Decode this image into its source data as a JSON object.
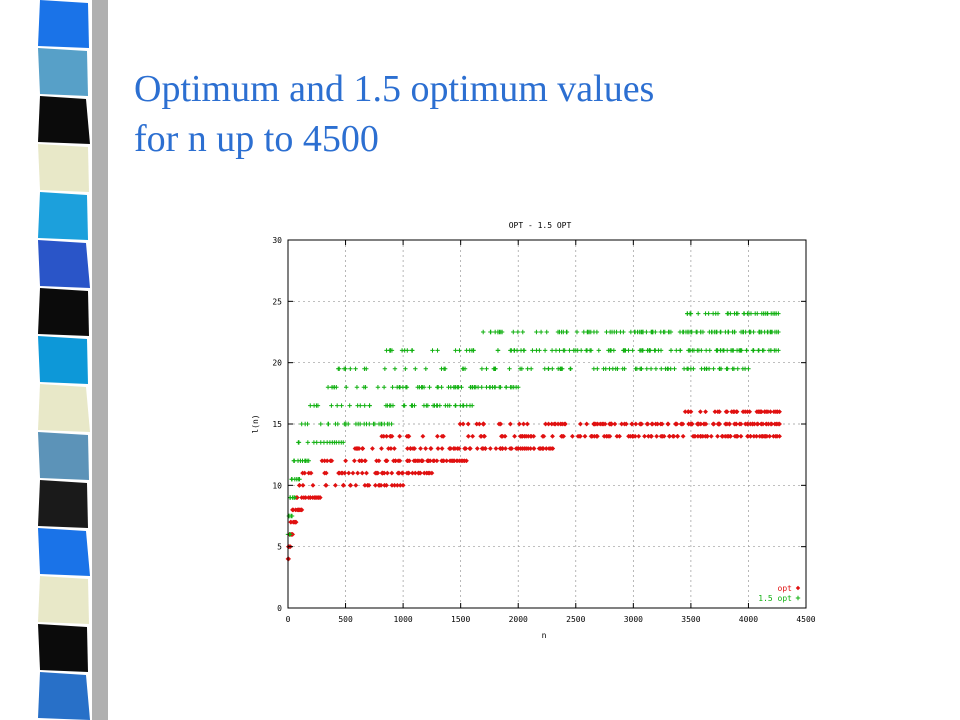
{
  "slide": {
    "title_line1": "Optimum and 1.5 optimum values",
    "title_line2": "for n up to 4500",
    "title_color": "#2c6fd1"
  },
  "decor": {
    "stripe_colors": [
      "#1a73e8",
      "#57a0c8",
      "#0b0b0b",
      "#e8e8c8",
      "#1ca0dc",
      "#2a55c8",
      "#0b0b0b",
      "#0d98d8",
      "#e8e8c8",
      "#5c93b8",
      "#1a1a1a",
      "#1a73e8",
      "#e8e8c8",
      "#0b0b0b",
      "#2870c8"
    ]
  },
  "chart_data": {
    "type": "scatter",
    "title": "OPT - 1.5 OPT",
    "xlabel": "n",
    "ylabel": "l(n)",
    "xlim": [
      0,
      4500
    ],
    "ylim": [
      0,
      30
    ],
    "xticks": [
      0,
      500,
      1000,
      1500,
      2000,
      2500,
      3000,
      3500,
      4000,
      4500
    ],
    "yticks": [
      0,
      5,
      10,
      15,
      20,
      25,
      30
    ],
    "grid": true,
    "legend_position": "bottom-right",
    "series": [
      {
        "name": "opt",
        "marker": "diamond",
        "color": "#e01010",
        "levels": [
          {
            "y": 4,
            "x_start": 0,
            "x_end": 5,
            "density": 2
          },
          {
            "y": 5,
            "x_start": 5,
            "x_end": 20,
            "density": 3
          },
          {
            "y": 6,
            "x_start": 15,
            "x_end": 40,
            "density": 4
          },
          {
            "y": 7,
            "x_start": 25,
            "x_end": 70,
            "density": 5
          },
          {
            "y": 8,
            "x_start": 45,
            "x_end": 120,
            "density": 8
          },
          {
            "y": 9,
            "x_start": 80,
            "x_end": 280,
            "density": 14
          },
          {
            "y": 10,
            "x_start": 130,
            "x_end": 1000,
            "density": 24
          },
          {
            "y": 11,
            "x_start": 200,
            "x_end": 1250,
            "density": 40
          },
          {
            "y": 12,
            "x_start": 380,
            "x_end": 1550,
            "density": 50
          },
          {
            "y": 13,
            "x_start": 650,
            "x_end": 2300,
            "density": 60
          },
          {
            "y": 14,
            "x_start": 1050,
            "x_end": 4270,
            "density": 110
          },
          {
            "y": 15,
            "x_start": 1700,
            "x_end": 4270,
            "density": 110
          },
          {
            "y": 16,
            "x_start": 3500,
            "x_end": 4270,
            "density": 30
          }
        ]
      },
      {
        "name": "1.5 opt",
        "marker": "plus",
        "color": "#10b010",
        "levels": [
          {
            "y": 6,
            "x_start": 0,
            "x_end": 20,
            "density": 3
          },
          {
            "y": 7.5,
            "x_start": 10,
            "x_end": 35,
            "density": 3
          },
          {
            "y": 9,
            "x_start": 20,
            "x_end": 60,
            "density": 4
          },
          {
            "y": 10.5,
            "x_start": 35,
            "x_end": 100,
            "density": 5
          },
          {
            "y": 12,
            "x_start": 55,
            "x_end": 180,
            "density": 8
          },
          {
            "y": 13.5,
            "x_start": 95,
            "x_end": 480,
            "density": 14
          },
          {
            "y": 15,
            "x_start": 170,
            "x_end": 900,
            "density": 25
          },
          {
            "y": 16.5,
            "x_start": 260,
            "x_end": 1600,
            "density": 40
          },
          {
            "y": 18,
            "x_start": 420,
            "x_end": 2000,
            "density": 55
          },
          {
            "y": 19.5,
            "x_start": 680,
            "x_end": 4000,
            "density": 80
          },
          {
            "y": 21,
            "x_start": 1080,
            "x_end": 4260,
            "density": 110
          },
          {
            "y": 22.5,
            "x_start": 1860,
            "x_end": 4260,
            "density": 100
          },
          {
            "y": 24,
            "x_start": 3500,
            "x_end": 4260,
            "density": 30
          }
        ]
      }
    ]
  }
}
